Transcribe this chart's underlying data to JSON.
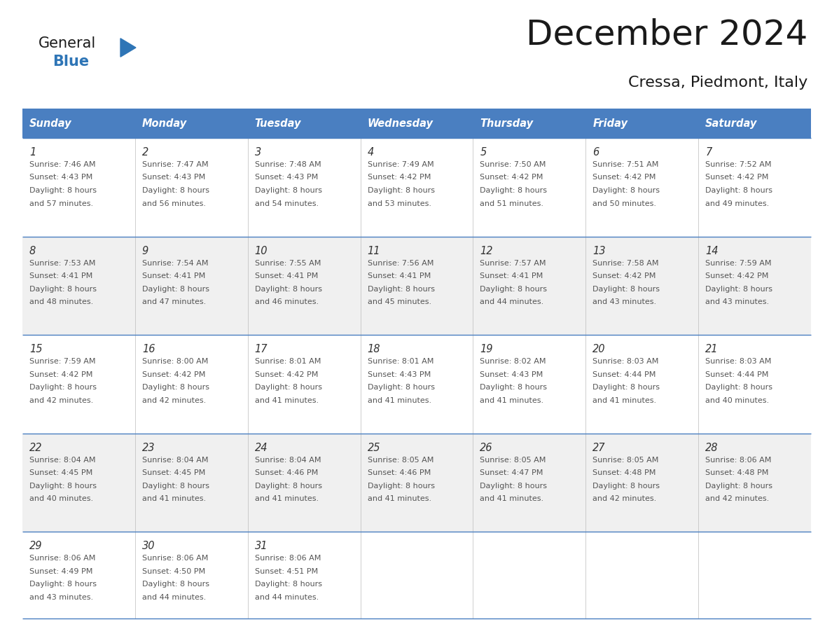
{
  "title": "December 2024",
  "subtitle": "Cressa, Piedmont, Italy",
  "days_of_week": [
    "Sunday",
    "Monday",
    "Tuesday",
    "Wednesday",
    "Thursday",
    "Friday",
    "Saturday"
  ],
  "header_bg": "#4a7fc1",
  "header_text_color": "#FFFFFF",
  "row_bg_odd": "#FFFFFF",
  "row_bg_even": "#F0F0F0",
  "cell_text_color": "#555555",
  "day_num_color": "#333333",
  "line_color": "#4a7fc1",
  "general_color": "#1a1a1a",
  "blue_color": "#2E75B6",
  "triangle_color": "#2E75B6",
  "calendar_data": [
    [
      {
        "day": 1,
        "sunrise": "7:46 AM",
        "sunset": "4:43 PM",
        "daylight_min": 57
      },
      {
        "day": 2,
        "sunrise": "7:47 AM",
        "sunset": "4:43 PM",
        "daylight_min": 56
      },
      {
        "day": 3,
        "sunrise": "7:48 AM",
        "sunset": "4:43 PM",
        "daylight_min": 54
      },
      {
        "day": 4,
        "sunrise": "7:49 AM",
        "sunset": "4:42 PM",
        "daylight_min": 53
      },
      {
        "day": 5,
        "sunrise": "7:50 AM",
        "sunset": "4:42 PM",
        "daylight_min": 51
      },
      {
        "day": 6,
        "sunrise": "7:51 AM",
        "sunset": "4:42 PM",
        "daylight_min": 50
      },
      {
        "day": 7,
        "sunrise": "7:52 AM",
        "sunset": "4:42 PM",
        "daylight_min": 49
      }
    ],
    [
      {
        "day": 8,
        "sunrise": "7:53 AM",
        "sunset": "4:41 PM",
        "daylight_min": 48
      },
      {
        "day": 9,
        "sunrise": "7:54 AM",
        "sunset": "4:41 PM",
        "daylight_min": 47
      },
      {
        "day": 10,
        "sunrise": "7:55 AM",
        "sunset": "4:41 PM",
        "daylight_min": 46
      },
      {
        "day": 11,
        "sunrise": "7:56 AM",
        "sunset": "4:41 PM",
        "daylight_min": 45
      },
      {
        "day": 12,
        "sunrise": "7:57 AM",
        "sunset": "4:41 PM",
        "daylight_min": 44
      },
      {
        "day": 13,
        "sunrise": "7:58 AM",
        "sunset": "4:42 PM",
        "daylight_min": 43
      },
      {
        "day": 14,
        "sunrise": "7:59 AM",
        "sunset": "4:42 PM",
        "daylight_min": 43
      }
    ],
    [
      {
        "day": 15,
        "sunrise": "7:59 AM",
        "sunset": "4:42 PM",
        "daylight_min": 42
      },
      {
        "day": 16,
        "sunrise": "8:00 AM",
        "sunset": "4:42 PM",
        "daylight_min": 42
      },
      {
        "day": 17,
        "sunrise": "8:01 AM",
        "sunset": "4:42 PM",
        "daylight_min": 41
      },
      {
        "day": 18,
        "sunrise": "8:01 AM",
        "sunset": "4:43 PM",
        "daylight_min": 41
      },
      {
        "day": 19,
        "sunrise": "8:02 AM",
        "sunset": "4:43 PM",
        "daylight_min": 41
      },
      {
        "day": 20,
        "sunrise": "8:03 AM",
        "sunset": "4:44 PM",
        "daylight_min": 41
      },
      {
        "day": 21,
        "sunrise": "8:03 AM",
        "sunset": "4:44 PM",
        "daylight_min": 40
      }
    ],
    [
      {
        "day": 22,
        "sunrise": "8:04 AM",
        "sunset": "4:45 PM",
        "daylight_min": 40
      },
      {
        "day": 23,
        "sunrise": "8:04 AM",
        "sunset": "4:45 PM",
        "daylight_min": 41
      },
      {
        "day": 24,
        "sunrise": "8:04 AM",
        "sunset": "4:46 PM",
        "daylight_min": 41
      },
      {
        "day": 25,
        "sunrise": "8:05 AM",
        "sunset": "4:46 PM",
        "daylight_min": 41
      },
      {
        "day": 26,
        "sunrise": "8:05 AM",
        "sunset": "4:47 PM",
        "daylight_min": 41
      },
      {
        "day": 27,
        "sunrise": "8:05 AM",
        "sunset": "4:48 PM",
        "daylight_min": 42
      },
      {
        "day": 28,
        "sunrise": "8:06 AM",
        "sunset": "4:48 PM",
        "daylight_min": 42
      }
    ],
    [
      {
        "day": 29,
        "sunrise": "8:06 AM",
        "sunset": "4:49 PM",
        "daylight_min": 43
      },
      {
        "day": 30,
        "sunrise": "8:06 AM",
        "sunset": "4:50 PM",
        "daylight_min": 44
      },
      {
        "day": 31,
        "sunrise": "8:06 AM",
        "sunset": "4:51 PM",
        "daylight_min": 44
      },
      null,
      null,
      null,
      null
    ]
  ]
}
